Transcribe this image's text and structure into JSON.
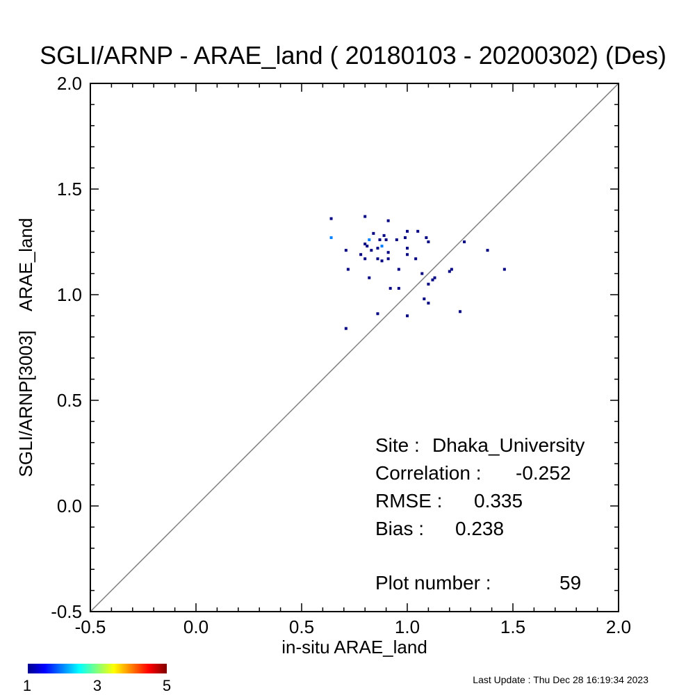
{
  "chart_data": {
    "type": "scatter",
    "title": "SGLI/ARNP - ARAE_land ( 20180103 - 20200302) (Des)",
    "xlabel": "in-situ ARAE_land",
    "ylabel": "SGLI/ARNP[3003]    ARAE_land",
    "xlim": [
      -0.5,
      2.0
    ],
    "ylim": [
      -0.5,
      2.0
    ],
    "x_ticks": [
      "-0.5",
      "0.0",
      "0.5",
      "1.0",
      "1.5",
      "2.0"
    ],
    "y_ticks": [
      "-0.5",
      "0.0",
      "0.5",
      "1.0",
      "1.5",
      "2.0"
    ],
    "x_tick_values": [
      -0.5,
      0.0,
      0.5,
      1.0,
      1.5,
      2.0
    ],
    "y_tick_values": [
      -0.5,
      0.0,
      0.5,
      1.0,
      1.5,
      2.0
    ],
    "reference_line": "1:1",
    "reference_line_color": "#7f7f7f",
    "grid": false,
    "colorbar": {
      "ticks": [
        "1",
        "3",
        "5"
      ],
      "min": 1,
      "max": 5,
      "colormap": "jet"
    },
    "stats": [
      {
        "label": "Site :",
        "value": "Dhaka_University"
      },
      {
        "label": "Correlation :",
        "value": "-0.252"
      },
      {
        "label": "RMSE :",
        "value": "0.335"
      },
      {
        "label": "Bias :",
        "value": "0.238"
      },
      {
        "label": "Plot number :",
        "value": "59"
      }
    ],
    "points": [
      {
        "x": 0.64,
        "y": 1.36,
        "count": 1
      },
      {
        "x": 0.64,
        "y": 1.27,
        "count": 2
      },
      {
        "x": 0.71,
        "y": 1.21,
        "count": 1
      },
      {
        "x": 0.72,
        "y": 1.12,
        "count": 1
      },
      {
        "x": 0.71,
        "y": 0.84,
        "count": 1
      },
      {
        "x": 0.78,
        "y": 1.19,
        "count": 1
      },
      {
        "x": 0.8,
        "y": 1.37,
        "count": 1
      },
      {
        "x": 0.8,
        "y": 1.24,
        "count": 1
      },
      {
        "x": 0.8,
        "y": 1.17,
        "count": 1
      },
      {
        "x": 0.81,
        "y": 1.23,
        "count": 1
      },
      {
        "x": 0.82,
        "y": 1.26,
        "count": 2
      },
      {
        "x": 0.82,
        "y": 1.08,
        "count": 1
      },
      {
        "x": 0.83,
        "y": 1.21,
        "count": 1
      },
      {
        "x": 0.84,
        "y": 1.29,
        "count": 1
      },
      {
        "x": 0.86,
        "y": 1.22,
        "count": 1
      },
      {
        "x": 0.86,
        "y": 1.17,
        "count": 1
      },
      {
        "x": 0.86,
        "y": 0.91,
        "count": 1
      },
      {
        "x": 0.87,
        "y": 1.26,
        "count": 1
      },
      {
        "x": 0.88,
        "y": 1.23,
        "count": 2
      },
      {
        "x": 0.88,
        "y": 1.16,
        "count": 1
      },
      {
        "x": 0.89,
        "y": 1.28,
        "count": 1
      },
      {
        "x": 0.9,
        "y": 1.26,
        "count": 1
      },
      {
        "x": 0.91,
        "y": 1.35,
        "count": 1
      },
      {
        "x": 0.91,
        "y": 1.2,
        "count": 1
      },
      {
        "x": 0.91,
        "y": 1.17,
        "count": 1
      },
      {
        "x": 0.92,
        "y": 1.03,
        "count": 1
      },
      {
        "x": 0.95,
        "y": 1.26,
        "count": 1
      },
      {
        "x": 0.96,
        "y": 1.12,
        "count": 1
      },
      {
        "x": 0.96,
        "y": 1.03,
        "count": 1
      },
      {
        "x": 0.99,
        "y": 1.27,
        "count": 1
      },
      {
        "x": 1.0,
        "y": 1.3,
        "count": 1
      },
      {
        "x": 1.0,
        "y": 1.22,
        "count": 1
      },
      {
        "x": 1.0,
        "y": 1.19,
        "count": 1
      },
      {
        "x": 1.0,
        "y": 0.9,
        "count": 1
      },
      {
        "x": 1.04,
        "y": 1.17,
        "count": 1
      },
      {
        "x": 1.05,
        "y": 1.3,
        "count": 1
      },
      {
        "x": 1.07,
        "y": 1.1,
        "count": 1
      },
      {
        "x": 1.08,
        "y": 0.98,
        "count": 1
      },
      {
        "x": 1.09,
        "y": 1.27,
        "count": 1
      },
      {
        "x": 1.1,
        "y": 1.25,
        "count": 1
      },
      {
        "x": 1.1,
        "y": 1.05,
        "count": 1
      },
      {
        "x": 1.1,
        "y": 0.96,
        "count": 1
      },
      {
        "x": 1.12,
        "y": 1.07,
        "count": 1
      },
      {
        "x": 1.13,
        "y": 1.08,
        "count": 1
      },
      {
        "x": 1.2,
        "y": 1.11,
        "count": 1
      },
      {
        "x": 1.21,
        "y": 1.12,
        "count": 1
      },
      {
        "x": 1.25,
        "y": 0.92,
        "count": 1
      },
      {
        "x": 1.27,
        "y": 1.25,
        "count": 1
      },
      {
        "x": 1.38,
        "y": 1.21,
        "count": 1
      },
      {
        "x": 1.46,
        "y": 1.12,
        "count": 1
      }
    ]
  },
  "footer": {
    "last_update": "Last Update : Thu Dec 28 16:19:34 2023"
  }
}
